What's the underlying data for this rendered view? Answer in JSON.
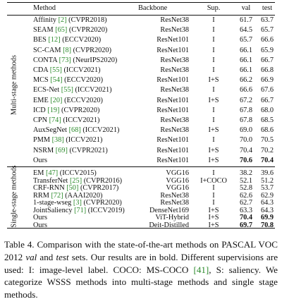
{
  "header": {
    "method": "Method",
    "backbone": "Backbone",
    "sup": "Sup.",
    "val": "val",
    "test": "test"
  },
  "groups": [
    {
      "label": "Multi-stage methods"
    },
    {
      "label": "Single-stage methods"
    }
  ],
  "rows_multi": [
    {
      "name": "Affinity",
      "cite": "[2]",
      "venue": "(CVPR2018)",
      "backbone": "ResNet38",
      "sup": "I",
      "val": "61.7",
      "test": "63.7"
    },
    {
      "name": "SEAM",
      "cite": "[65]",
      "venue": "(CVPR2020)",
      "backbone": "ResNet38",
      "sup": "I",
      "val": "64.5",
      "test": "65.7"
    },
    {
      "name": "BES",
      "cite": "[12]",
      "venue": "(ECCV2020)",
      "backbone": "ResNet101",
      "sup": "I",
      "val": "65.7",
      "test": "66.6"
    },
    {
      "name": "SC-CAM",
      "cite": "[8]",
      "venue": "(CVPR2020)",
      "backbone": "ResNet101",
      "sup": "I",
      "val": "66.1",
      "test": "65.9"
    },
    {
      "name": "CONTA",
      "cite": "[73]",
      "venue": "(NeurIPS2020)",
      "backbone": "ResNet38",
      "sup": "I",
      "val": "66.1",
      "test": "66.7"
    },
    {
      "name": "CDA",
      "cite": "[55]",
      "venue": "(ICCV2021)",
      "backbone": "ResNet38",
      "sup": "I",
      "val": "66.1",
      "test": "66.8"
    },
    {
      "name": "MCS",
      "cite": "[54]",
      "venue": "(ECCV2020)",
      "backbone": "ResNet101",
      "sup": "I+S",
      "val": "66.2",
      "test": "66.9"
    },
    {
      "name": "ECS-Net",
      "cite": "[55]",
      "venue": "(ICCV2021)",
      "backbone": "ResNet38",
      "sup": "I",
      "val": "66.6",
      "test": "67.6"
    },
    {
      "name": "EME",
      "cite": "[20]",
      "venue": "(ECCV2020)",
      "backbone": "ResNet101",
      "sup": "I+S",
      "val": "67.2",
      "test": "66.7"
    },
    {
      "name": "ICD",
      "cite": "[19]",
      "venue": "(CVPR2020)",
      "backbone": "ResNet101",
      "sup": "I",
      "val": "67.8",
      "test": "68.0"
    },
    {
      "name": "CPN",
      "cite": "[74]",
      "venue": "(ICCV2021)",
      "backbone": "ResNet38",
      "sup": "I",
      "val": "67.8",
      "test": "68.5"
    },
    {
      "name": "AuxSegNet",
      "cite": "[68]",
      "venue": "(ICCV2021)",
      "backbone": "ResNet38",
      "sup": "I+S",
      "val": "69.0",
      "test": "68.6"
    },
    {
      "name": "PMM",
      "cite": "[38]",
      "venue": "(ICCV2021)",
      "backbone": "ResNet101",
      "sup": "I",
      "val": "70.0",
      "test": "70.5"
    },
    {
      "name": "NSRM",
      "cite": "[69]",
      "venue": "(CVPR2021)",
      "backbone": "ResNet101",
      "sup": "I+S",
      "val": "70.4",
      "test": "70.2"
    },
    {
      "name": "Ours",
      "cite": "",
      "venue": "",
      "backbone": "ResNet101",
      "sup": "I+S",
      "val": "70.6",
      "test": "70.4",
      "bold_val": true,
      "bold_test": true
    }
  ],
  "rows_single": [
    {
      "name": "EM",
      "cite": "[47]",
      "venue": "(ICCV2015)",
      "backbone": "VGG16",
      "sup": "I",
      "val": "38.2",
      "test": "39.6"
    },
    {
      "name": "TransferNet",
      "cite": "[25]",
      "venue": "(CVPR2016)",
      "backbone": "VGG16",
      "sup": "I+COCO",
      "val": "52.1",
      "test": "51.2"
    },
    {
      "name": "CRF-RNN",
      "cite": "[50]",
      "venue": "(CVPR2017)",
      "backbone": "VGG16",
      "sup": "I",
      "val": "52.8",
      "test": "53.7"
    },
    {
      "name": "RRM",
      "cite": "[72]",
      "venue": "(AAAI2020)",
      "backbone": "ResNet38",
      "sup": "I",
      "val": "62.6",
      "test": "62.9"
    },
    {
      "name": "1-stage-wseg",
      "cite": "[3]",
      "venue": "(CVPR2020)",
      "backbone": "ResNet38",
      "sup": "I",
      "val": "62.7",
      "test": "64.3"
    },
    {
      "name": "JointSaliency",
      "cite": "[71]",
      "venue": "(ICCV2019)",
      "backbone": "DenseNet169",
      "sup": "I+S",
      "val": "63.3",
      "test": "64.3"
    },
    {
      "name": "Ours",
      "cite": "",
      "venue": "",
      "backbone": "ViT-Hybrid",
      "sup": "I+S",
      "val": "70.4",
      "test": "69.9",
      "bold_val": true,
      "bold_test": true
    },
    {
      "name": "Ours",
      "cite": "",
      "venue": "",
      "backbone": "Deit-Distilled",
      "sup": "I+S",
      "val": "69.7",
      "test": "70.8",
      "bold_val": true,
      "bold_test": true
    }
  ],
  "caption": {
    "p1": "Table 4. Comparison with the state-of-the-art methods on PASCAL VOC 2012 ",
    "val_word": "val",
    "p2": " and ",
    "test_word": "test",
    "p3": " sets. Our results are in bold. Different supervisions are used: I: image-level label. COCO: MS-COCO ",
    "cite": "[41]",
    "p4": ", S: saliency. We categorize WSSS methods into multi-stage methods and single stage methods."
  },
  "colors": {
    "citation": "#2b8a2b",
    "text": "#111111"
  }
}
